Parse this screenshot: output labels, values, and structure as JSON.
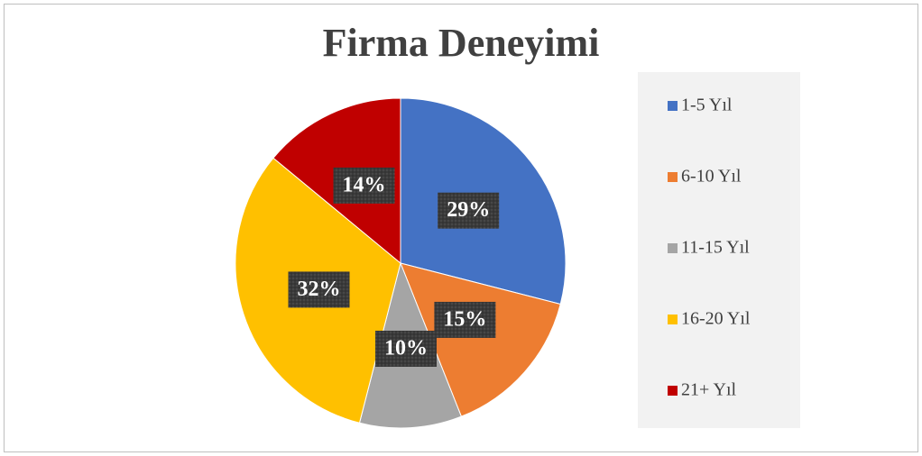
{
  "chart_data": {
    "type": "pie",
    "title": "Firma Deneyimi",
    "categories": [
      "1-5 Yıl",
      "6-10 Yıl",
      "11-15 Yıl",
      "16-20 Yıl",
      "21+ Yıl"
    ],
    "values": [
      29,
      15,
      10,
      32,
      14
    ],
    "value_labels": [
      "29%",
      "15%",
      "10%",
      "32%",
      "14%"
    ],
    "colors": [
      "#4472c4",
      "#ed7d31",
      "#a5a5a5",
      "#ffc000",
      "#c00000"
    ],
    "legend": "right"
  }
}
